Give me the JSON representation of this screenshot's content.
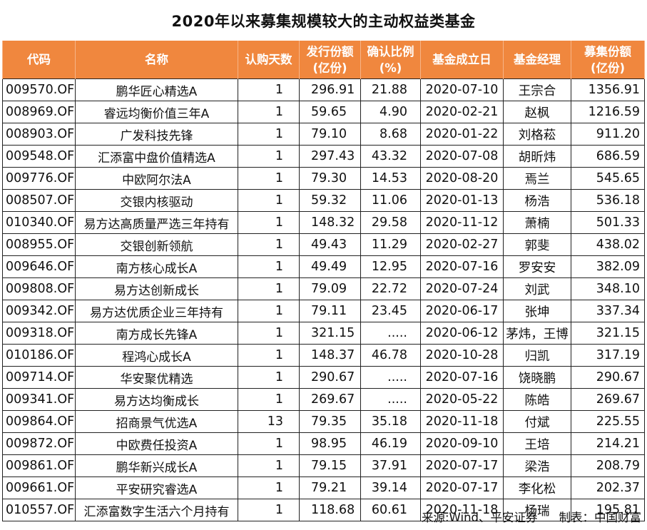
{
  "title": "2020年以来募集规模较大的主动权益类基金",
  "headers": {
    "code": [
      "代码"
    ],
    "name": [
      "名称"
    ],
    "days": [
      "认购天数"
    ],
    "issue": [
      "发行份额",
      "(亿份)"
    ],
    "ratio": [
      "确认比例",
      "(%)"
    ],
    "date": [
      "基金成立日"
    ],
    "manager": [
      "基金经理"
    ],
    "amount": [
      "募集份额",
      "(亿份)"
    ]
  },
  "rows": [
    {
      "code": "009570.OF",
      "name": "鹏华匠心精选A",
      "days": "1",
      "issue": "296.91",
      "ratio": "21.88",
      "date": "2020-07-10",
      "manager": "王宗合",
      "amount": "1356.91"
    },
    {
      "code": "008969.OF",
      "name": "睿远均衡价值三年A",
      "days": "1",
      "issue": "59.65",
      "ratio": "4.90",
      "date": "2020-02-21",
      "manager": "赵枫",
      "amount": "1216.59"
    },
    {
      "code": "008903.OF",
      "name": "广发科技先锋",
      "days": "1",
      "issue": "79.10",
      "ratio": "8.68",
      "date": "2020-01-22",
      "manager": "刘格菘",
      "amount": "911.20"
    },
    {
      "code": "009548.OF",
      "name": "汇添富中盘价值精选A",
      "days": "1",
      "issue": "297.43",
      "ratio": "43.32",
      "date": "2020-07-08",
      "manager": "胡昕炜",
      "amount": "686.59"
    },
    {
      "code": "009776.OF",
      "name": "中欧阿尔法A",
      "days": "1",
      "issue": "79.30",
      "ratio": "14.53",
      "date": "2020-08-20",
      "manager": "焉兰",
      "amount": "545.65"
    },
    {
      "code": "008507.OF",
      "name": "交银内核驱动",
      "days": "1",
      "issue": "59.32",
      "ratio": "11.06",
      "date": "2020-01-13",
      "manager": "杨浩",
      "amount": "536.18"
    },
    {
      "code": "010340.OF",
      "name": "易方达高质量严选三年持有",
      "days": "1",
      "issue": "148.32",
      "ratio": "29.58",
      "date": "2020-11-12",
      "manager": "萧楠",
      "amount": "501.33"
    },
    {
      "code": "008955.OF",
      "name": "交银创新领航",
      "days": "1",
      "issue": "49.43",
      "ratio": "11.29",
      "date": "2020-02-27",
      "manager": "郭斐",
      "amount": "438.02"
    },
    {
      "code": "009646.OF",
      "name": "南方核心成长A",
      "days": "1",
      "issue": "49.49",
      "ratio": "12.95",
      "date": "2020-07-16",
      "manager": "罗安安",
      "amount": "382.09"
    },
    {
      "code": "009808.OF",
      "name": "易方达创新成长",
      "days": "1",
      "issue": "79.09",
      "ratio": "22.72",
      "date": "2020-07-24",
      "manager": "刘武",
      "amount": "348.10"
    },
    {
      "code": "009342.OF",
      "name": "易方达优质企业三年持有",
      "days": "1",
      "issue": "79.11",
      "ratio": "23.45",
      "date": "2020-06-17",
      "manager": "张坤",
      "amount": "337.34"
    },
    {
      "code": "009318.OF",
      "name": "南方成长先锋A",
      "days": "1",
      "issue": "321.15",
      "ratio": ".....",
      "date": "2020-06-12",
      "manager": "茅炜，王博",
      "amount": "321.15"
    },
    {
      "code": "010186.OF",
      "name": "程鸿心成长A",
      "days": "1",
      "issue": "148.37",
      "ratio": "46.78",
      "date": "2020-10-28",
      "manager": "归凯",
      "amount": "317.19"
    },
    {
      "code": "009714.OF",
      "name": "华安聚优精选",
      "days": "1",
      "issue": "290.67",
      "ratio": ".....",
      "date": "2020-07-16",
      "manager": "饶晓鹏",
      "amount": "290.67"
    },
    {
      "code": "009341.OF",
      "name": "易方达均衡成长",
      "days": "1",
      "issue": "269.67",
      "ratio": ".....",
      "date": "2020-05-22",
      "manager": "陈皓",
      "amount": "269.67"
    },
    {
      "code": "009864.OF",
      "name": "招商景气优选A",
      "days": "13",
      "issue": "79.35",
      "ratio": "35.18",
      "date": "2020-11-18",
      "manager": "付斌",
      "amount": "225.55"
    },
    {
      "code": "009872.OF",
      "name": "中欧费任投资A",
      "days": "1",
      "issue": "98.95",
      "ratio": "46.19",
      "date": "2020-09-10",
      "manager": "王培",
      "amount": "214.21"
    },
    {
      "code": "009861.OF",
      "name": "鹏华新兴成长A",
      "days": "1",
      "issue": "79.15",
      "ratio": "37.91",
      "date": "2020-07-17",
      "manager": "梁浩",
      "amount": "208.79"
    },
    {
      "code": "009661.OF",
      "name": "平安研究睿选A",
      "days": "1",
      "issue": "79.21",
      "ratio": "39.14",
      "date": "2020-07-17",
      "manager": "李化松",
      "amount": "202.37"
    },
    {
      "code": "010557.OF",
      "name": "汇添富数字生活六个月持有",
      "days": "1",
      "issue": "118.68",
      "ratio": "60.61",
      "date": "2020-11-18",
      "manager": "杨瑞",
      "amount": "195.81"
    }
  ],
  "footer": {
    "source": "来源:Wind、平安证券",
    "maker": "制表：中国财富"
  },
  "colors": {
    "header_bg": "#f0873e",
    "header_text": "#ffffff",
    "border": "#222222"
  }
}
